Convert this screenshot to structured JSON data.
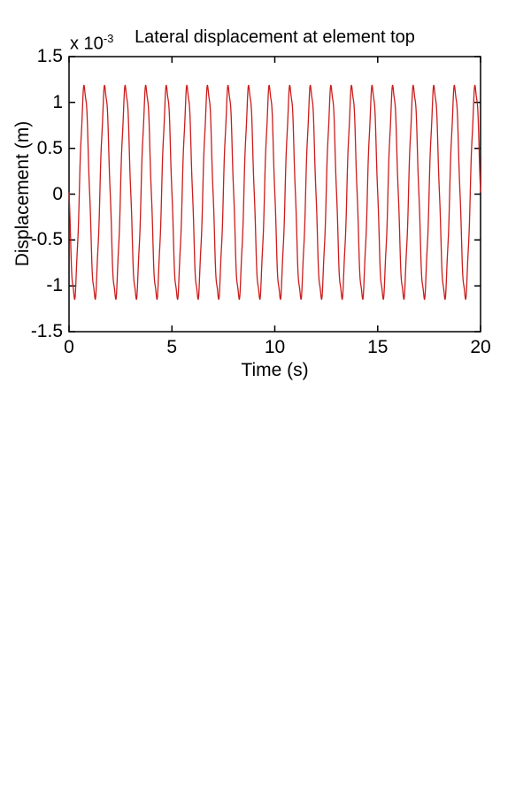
{
  "chart_data": {
    "type": "line",
    "title": "Lateral displacement at element top",
    "xlabel": "Time (s)",
    "ylabel": "Displacement (m)",
    "y_exponent_label": "x 10",
    "y_exponent_power": "-3",
    "y_units_factor": 0.001,
    "xlim": [
      0,
      20
    ],
    "ylim": [
      -1.5,
      1.5
    ],
    "xticks": [
      0,
      5,
      10,
      15,
      20
    ],
    "xtick_labels": [
      "0",
      "5",
      "10",
      "15",
      "20"
    ],
    "yticks": [
      -1.5,
      -1,
      -0.5,
      0,
      0.5,
      1,
      1.5
    ],
    "ytick_labels": [
      "-1.5",
      "-1",
      "-0.5",
      "0",
      "0.5",
      "1",
      "1.5"
    ],
    "grid": false,
    "legend": false,
    "box": true,
    "ticks_mirrored": true,
    "line_color": "#cc1c1c",
    "axis_color": "#000000",
    "background_color": "#ffffff",
    "series": [
      {
        "name": "lateral-displacement-at-element-top",
        "unit": "1e-3 m",
        "model": "y(t) = offset + sum( amplitude * sin(2*pi*frequency_hz*t + phase_rad) )",
        "offset": 0.02,
        "components": [
          {
            "amplitude": 1.14,
            "frequency_hz": 1.0,
            "phase_rad": 3.141592653589793
          },
          {
            "amplitude": 0.05,
            "frequency_hz": 6.0,
            "phase_rad": 0
          }
        ],
        "t_start": 0,
        "t_end": 20,
        "dt": 0.004,
        "period_s": 1.0,
        "cycles": 20,
        "peak_value": 1.16,
        "trough_value": -1.12
      }
    ]
  }
}
